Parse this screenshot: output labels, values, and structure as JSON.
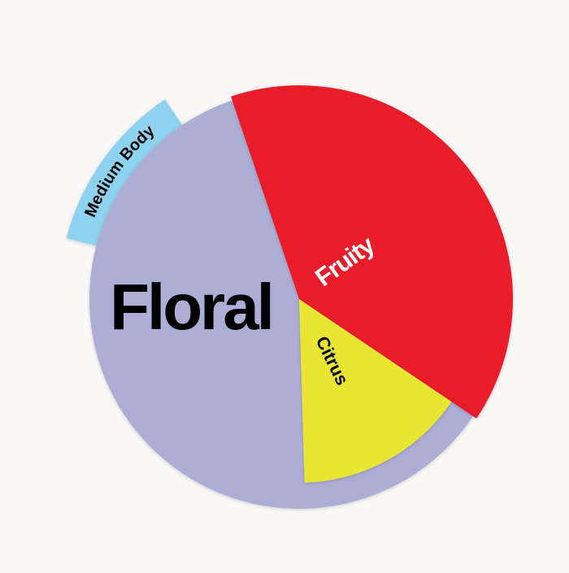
{
  "chart_data": {
    "type": "pie",
    "title": "",
    "slices": [
      {
        "label": "Fruity",
        "value": 39.6,
        "color": "#eb1d2b",
        "label_color": "#ffffff"
      },
      {
        "label": "Citrus",
        "value": 15.1,
        "color": "#e8e631",
        "label_color": "#000000"
      },
      {
        "label": "Floral",
        "value": 45.3,
        "color": "#adaed6",
        "label_color": "#000000"
      }
    ],
    "outer_ring": [
      {
        "label": "Medium Body",
        "value": 11.5,
        "color": "#8dd3ef",
        "label_color": "#000000"
      }
    ]
  }
}
